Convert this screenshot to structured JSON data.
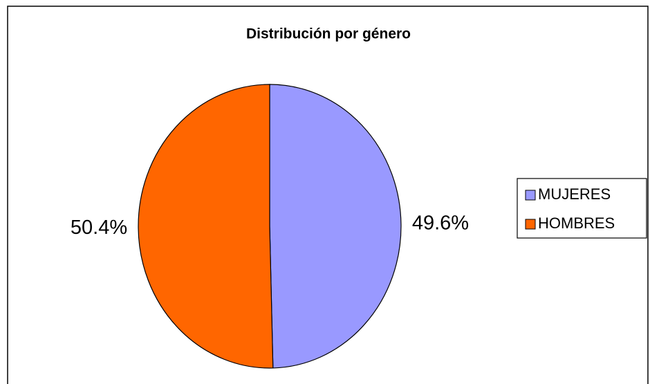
{
  "chart_data": {
    "type": "pie",
    "title": "Distribución por género",
    "categories": [
      "MUJERES",
      "HOMBRES"
    ],
    "values": [
      49.6,
      50.4
    ],
    "value_labels": [
      "49.6%",
      "50.4%"
    ],
    "colors": [
      "#9999ff",
      "#ff6600"
    ],
    "legend": "right"
  }
}
